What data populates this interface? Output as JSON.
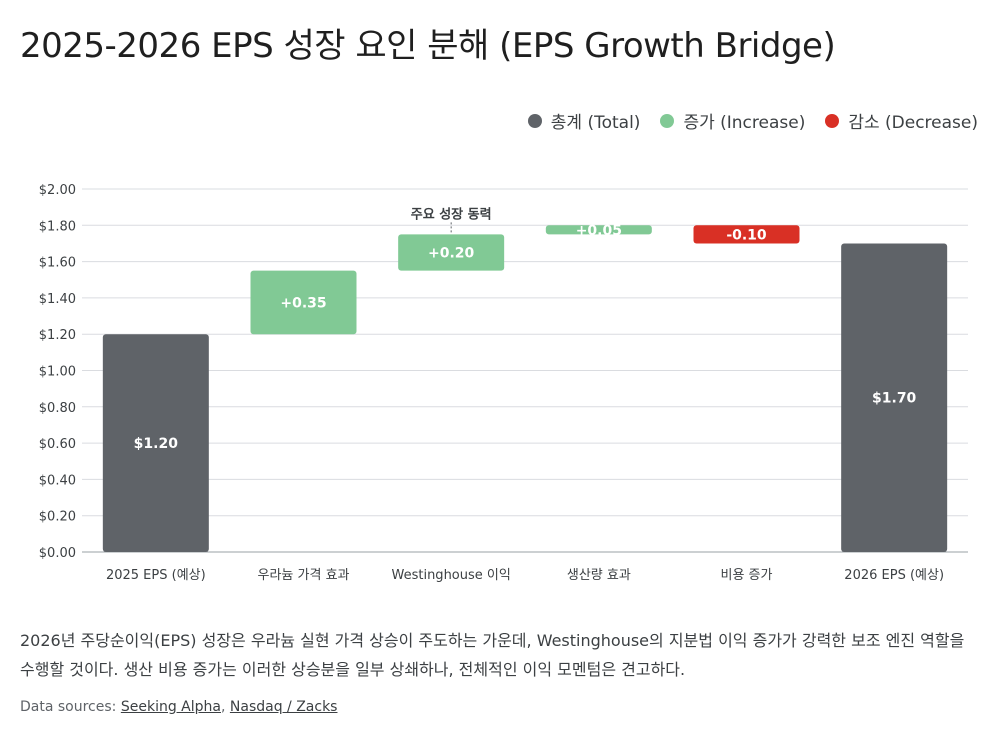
{
  "title": "2025-2026 EPS 성장 요인 분해 (EPS Growth Bridge)",
  "legend": [
    {
      "label": "총계 (Total)",
      "color": "#5f6368"
    },
    {
      "label": "증가 (Increase)",
      "color": "#81c995"
    },
    {
      "label": "감소 (Decrease)",
      "color": "#d93025"
    }
  ],
  "chart_data": {
    "type": "bar",
    "subtype": "waterfall",
    "categories": [
      "2025 EPS (예상)",
      "우라늄 가격 효과",
      "Westinghouse 이익",
      "생산량 효과",
      "비용 증가",
      "2026 EPS (예상)"
    ],
    "steps": [
      {
        "kind": "total",
        "start": 0,
        "end": 1.2,
        "label": "$1.20"
      },
      {
        "kind": "increase",
        "start": 1.2,
        "end": 1.55,
        "label": "+0.35"
      },
      {
        "kind": "increase",
        "start": 1.55,
        "end": 1.75,
        "label": "+0.20"
      },
      {
        "kind": "increase",
        "start": 1.75,
        "end": 1.8,
        "label": "+0.05"
      },
      {
        "kind": "decrease",
        "start": 1.8,
        "end": 1.7,
        "label": "-0.10"
      },
      {
        "kind": "total",
        "start": 0,
        "end": 1.7,
        "label": "$1.70"
      }
    ],
    "ylim": [
      0,
      2.0
    ],
    "yticks": [
      0,
      0.2,
      0.4,
      0.6,
      0.8,
      1.0,
      1.2,
      1.4,
      1.6,
      1.8,
      2.0
    ],
    "ytick_labels": [
      "$0.00",
      "$0.20",
      "$0.40",
      "$0.60",
      "$0.80",
      "$1.00",
      "$1.20",
      "$1.40",
      "$1.60",
      "$1.80",
      "$2.00"
    ],
    "grid": true,
    "legend_position": "top-right",
    "annotations": [
      {
        "category_index": 2,
        "text": "주요 성장 동력"
      }
    ],
    "colors": {
      "total": "#5f6368",
      "increase": "#81c995",
      "decrease": "#d93025",
      "grid": "#dadce0",
      "label_dark": "#ffffff"
    }
  },
  "caption": "2026년 주당순이익(EPS) 성장은 우라늄 실현 가격 상승이 주도하는 가운데, Westinghouse의 지분법 이익 증가가 강력한 보조 엔진 역할을 수행할 것이다. 생산 비용 증가는 이러한 상승분을 일부 상쇄하나, 전체적인 이익 모멘텀은 견고하다.",
  "sources": {
    "prefix": "Data sources:",
    "links": [
      "Seeking Alpha",
      "Nasdaq / Zacks"
    ],
    "separator": ","
  }
}
